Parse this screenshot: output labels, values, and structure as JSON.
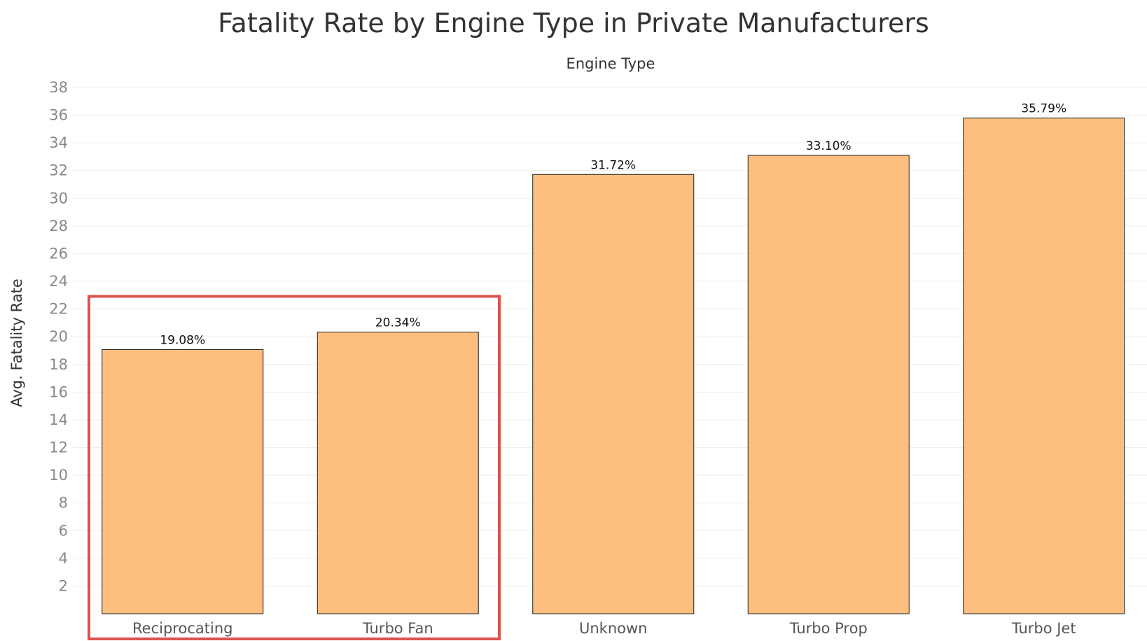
{
  "chart_data": {
    "type": "bar",
    "title": "Fatality Rate by Engine Type in Private Manufacturers",
    "column_header": "Engine Type",
    "xlabel": "",
    "ylabel": "Avg. Fatality Rate",
    "categories": [
      "Reciprocating",
      "Turbo Fan",
      "Unknown",
      "Turbo Prop",
      "Turbo Jet"
    ],
    "values": [
      19.08,
      20.34,
      31.72,
      33.1,
      35.79
    ],
    "value_labels": [
      "19.08%",
      "20.34%",
      "31.72%",
      "33.10%",
      "35.79%"
    ],
    "ylim": [
      0,
      38
    ],
    "yticks": [
      2,
      4,
      6,
      8,
      10,
      12,
      14,
      16,
      18,
      20,
      22,
      24,
      26,
      28,
      30,
      32,
      34,
      36,
      38
    ],
    "grid": true,
    "bar_color": "#FDBE7F",
    "bar_edge_color": "#222222",
    "highlight": {
      "categories": [
        "Reciprocating",
        "Turbo Fan"
      ],
      "color": "#D9534F"
    }
  }
}
